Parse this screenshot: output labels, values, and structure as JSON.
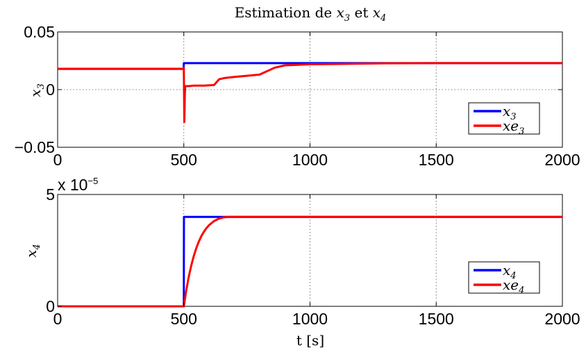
{
  "chart_data": [
    {
      "type": "line",
      "title": "Estimation de x_3 et x_4",
      "title_parts": {
        "prefix": "Estimation de ",
        "v1": "x",
        "s1": "3",
        "mid": " et ",
        "v2": "x",
        "s2": "4"
      },
      "ylabel": {
        "base": "x",
        "sub": "3"
      },
      "xlim": [
        0,
        2000
      ],
      "ylim": [
        -0.05,
        0.05
      ],
      "xticks": [
        "0",
        "500",
        "1000",
        "1500",
        "2000"
      ],
      "yticks": [
        "0.05",
        "0",
        "−0.05"
      ],
      "grid": true,
      "legend_position": "bottom-right",
      "series": [
        {
          "name": "x_3",
          "name_base": "x",
          "name_sub": "3",
          "color": "#0000ff",
          "x": [
            0,
            499.5,
            500,
            2000
          ],
          "y": [
            0.018,
            0.018,
            0.023,
            0.023
          ]
        },
        {
          "name": "xe_3",
          "name_base": "xe",
          "name_sub": "3",
          "color": "#ff0000",
          "x": [
            0,
            499,
            500,
            501,
            502,
            503,
            504,
            505,
            506,
            507,
            510,
            520,
            540,
            580,
            620,
            640,
            660,
            700,
            750,
            800,
            830,
            860,
            900,
            1000,
            1100,
            1200,
            1300,
            1500,
            2000
          ],
          "y": [
            0.018,
            0.018,
            0.019,
            -0.005,
            -0.028,
            -0.018,
            -0.005,
            0.002,
            0.0025,
            0.003,
            0.003,
            0.003,
            0.0035,
            0.0035,
            0.004,
            0.009,
            0.01,
            0.011,
            0.012,
            0.013,
            0.016,
            0.019,
            0.021,
            0.022,
            0.0222,
            0.0225,
            0.0228,
            0.023,
            0.023
          ]
        }
      ]
    },
    {
      "type": "line",
      "ylabel": {
        "base": "x",
        "sub": "4"
      },
      "xlabel": "t [s]",
      "exponent": {
        "base": "x 10",
        "exp": "−5"
      },
      "xlim": [
        0,
        2000
      ],
      "ylim": [
        0,
        5
      ],
      "xticks": [
        "0",
        "500",
        "1000",
        "1500",
        "2000"
      ],
      "yticks": [
        "5",
        "0"
      ],
      "grid": true,
      "legend_position": "bottom-right",
      "series": [
        {
          "name": "x_4",
          "name_base": "x",
          "name_sub": "4",
          "color": "#0000ff",
          "x": [
            0,
            500,
            500.5,
            2000
          ],
          "y": [
            0,
            0,
            4,
            4
          ]
        },
        {
          "name": "xe_4",
          "name_base": "xe",
          "name_sub": "4",
          "color": "#ff0000",
          "x": [
            0,
            500,
            510,
            520,
            530,
            540,
            550,
            560,
            570,
            580,
            590,
            600,
            620,
            640,
            660,
            680,
            700,
            730,
            760,
            800,
            850,
            900,
            1000,
            1500,
            2000
          ],
          "y": [
            0,
            0,
            0.735,
            1.346,
            1.85,
            2.27,
            2.62,
            2.91,
            3.15,
            3.34,
            3.5,
            3.63,
            3.815,
            3.925,
            3.98,
            4.0,
            4.0,
            4.0,
            4.0,
            4.0,
            4.0,
            4.0,
            4.0,
            4.0,
            4.0
          ]
        }
      ]
    }
  ]
}
